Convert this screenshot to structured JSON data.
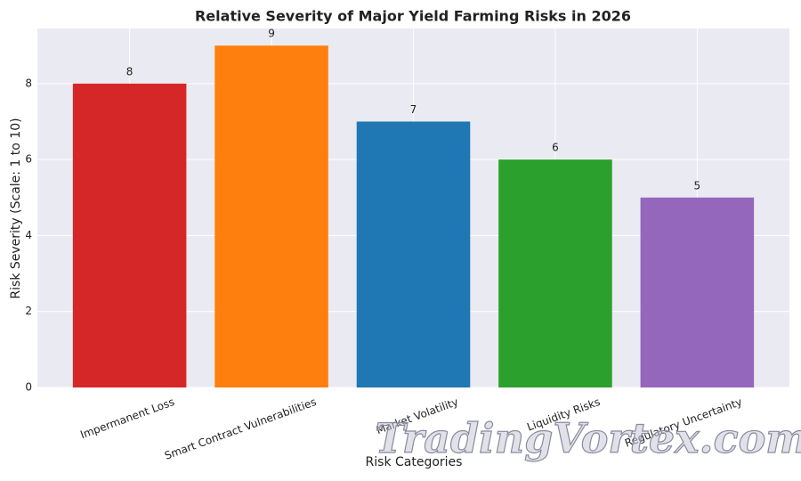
{
  "chart_data": {
    "type": "bar",
    "title": "Relative Severity of Major Yield Farming Risks in 2026",
    "x_label": "Risk Categories",
    "y_label": "Risk Severity (Scale: 1 to 10)",
    "categories": [
      "Impermanent Loss",
      "Smart Contract Vulnerabilities",
      "Market Volatility",
      "Liquidity Risks",
      "Regulatory Uncertainty"
    ],
    "values": [
      8,
      9,
      7,
      6,
      5
    ],
    "colors": [
      "#d62728",
      "#ff7f0e",
      "#1f77b4",
      "#2ca02c",
      "#9467bd"
    ],
    "ylim": [
      0,
      9.45
    ],
    "yticks": [
      0,
      2,
      4,
      6,
      8
    ],
    "grid": true,
    "watermark": "TradingVortex.com"
  }
}
